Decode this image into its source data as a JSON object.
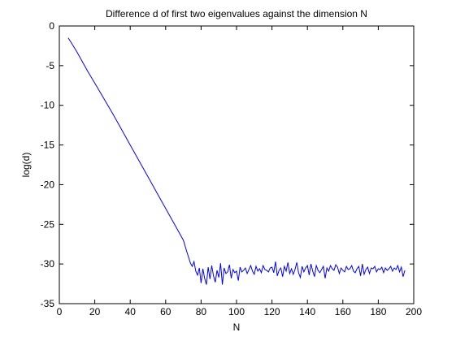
{
  "chart_data": {
    "type": "line",
    "title": "Difference d of first two eigenvalues against the dimension N",
    "xlabel": "N",
    "ylabel": "log(d)",
    "xlim": [
      0,
      200
    ],
    "ylim": [
      -35,
      0
    ],
    "xticks": [
      0,
      20,
      40,
      60,
      80,
      100,
      120,
      140,
      160,
      180,
      200
    ],
    "yticks": [
      0,
      -5,
      -10,
      -15,
      -20,
      -25,
      -30,
      -35
    ],
    "grid": false,
    "legend": "none",
    "line_color": "#0000ff",
    "series": [
      {
        "x": [
          5,
          7,
          10,
          13,
          16,
          20,
          25,
          30,
          35,
          40,
          45,
          50,
          55,
          60,
          65,
          70,
          72,
          74,
          75,
          76,
          77,
          78,
          79,
          80,
          81,
          82,
          83,
          84,
          85,
          86,
          87,
          88,
          89,
          90,
          91,
          92,
          93,
          94,
          95,
          96,
          97,
          98,
          99,
          100,
          101,
          102,
          103,
          104,
          105,
          106,
          107,
          108,
          109,
          110,
          111,
          112,
          113,
          114,
          115,
          116,
          117,
          118,
          119,
          120,
          121,
          122,
          123,
          124,
          125,
          126,
          127,
          128,
          129,
          130,
          131,
          132,
          133,
          134,
          135,
          136,
          137,
          138,
          139,
          140,
          141,
          142,
          143,
          144,
          145,
          146,
          147,
          148,
          149,
          150,
          151,
          152,
          153,
          154,
          155,
          156,
          157,
          158,
          159,
          160,
          161,
          162,
          163,
          164,
          165,
          166,
          167,
          168,
          169,
          170,
          171,
          172,
          173,
          174,
          175,
          176,
          177,
          178,
          179,
          180,
          181,
          182,
          183,
          184,
          185,
          186,
          187,
          188,
          189,
          190,
          191,
          192,
          193,
          194,
          195
        ],
        "y": [
          -1.5,
          -2.2,
          -3.3,
          -4.5,
          -5.7,
          -7.2,
          -9.1,
          -11.0,
          -13.0,
          -15.0,
          -17.0,
          -19.0,
          -21.0,
          -23.0,
          -25.0,
          -27.0,
          -28.5,
          -29.9,
          -30.3,
          -29.7,
          -30.9,
          -31.4,
          -30.5,
          -32.4,
          -30.6,
          -31.8,
          -32.6,
          -30.4,
          -31.9,
          -30.2,
          -31.5,
          -32.3,
          -30.8,
          -31.7,
          -29.9,
          -32.6,
          -30.5,
          -31.2,
          -31.0,
          -30.1,
          -31.8,
          -30.7,
          -31.1,
          -30.9,
          -32.1,
          -30.4,
          -31.0,
          -30.8,
          -30.5,
          -31.2,
          -30.7,
          -30.2,
          -30.9,
          -31.3,
          -30.3,
          -30.9,
          -30.6,
          -31.1,
          -30.2,
          -30.7,
          -30.8,
          -31.0,
          -30.5,
          -30.4,
          -31.1,
          -29.7,
          -31.5,
          -30.8,
          -30.5,
          -31.6,
          -30.3,
          -30.9,
          -29.8,
          -31.2,
          -30.6,
          -31.3,
          -30.7,
          -29.8,
          -31.1,
          -31.7,
          -30.3,
          -31.0,
          -30.5,
          -30.2,
          -31.4,
          -30.0,
          -30.9,
          -31.6,
          -30.2,
          -30.8,
          -31.1,
          -30.7,
          -30.3,
          -31.8,
          -30.5,
          -30.9,
          -30.2,
          -30.6,
          -30.8,
          -30.1,
          -30.4,
          -31.2,
          -30.5,
          -30.8,
          -31.0,
          -30.3,
          -30.7,
          -30.6,
          -30.2,
          -30.9,
          -31.1,
          -30.6,
          -30.3,
          -31.5,
          -30.0,
          -31.3,
          -30.7,
          -30.4,
          -31.2,
          -30.5,
          -30.6,
          -30.3,
          -31.0,
          -30.6,
          -30.7,
          -30.4,
          -31.1,
          -30.5,
          -30.8,
          -30.6,
          -30.3,
          -30.9,
          -30.5,
          -30.7,
          -30.2,
          -31.0,
          -30.4,
          -31.6,
          -30.8
        ]
      }
    ]
  }
}
